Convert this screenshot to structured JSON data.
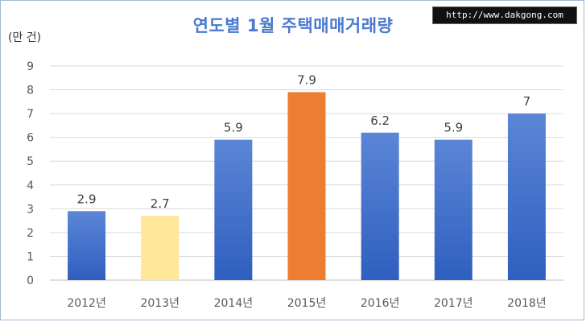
{
  "watermark": "http://www.dakgong.com",
  "chart_data": {
    "type": "bar",
    "title": "연도별 1월 주택매매거래량",
    "unit_label": "(만 건)",
    "xlabel": "",
    "ylabel": "",
    "categories": [
      "2012년",
      "2013년",
      "2014년",
      "2015년",
      "2016년",
      "2017년",
      "2018년"
    ],
    "values": [
      2.9,
      2.7,
      5.9,
      7.9,
      6.2,
      5.9,
      7
    ],
    "data_labels": [
      "2.9",
      "2.7",
      "5.9",
      "7.9",
      "6.2",
      "5.9",
      "7"
    ],
    "bar_colors": [
      "blue",
      "yellow",
      "blue",
      "orange",
      "blue",
      "blue",
      "blue"
    ],
    "palette": {
      "blue_top": "#5b86d6",
      "blue_bottom": "#2f5fbf",
      "yellow": "#ffe699",
      "orange": "#ed7d31"
    },
    "ylim": [
      0,
      9
    ],
    "yticks": [
      "0",
      "1",
      "2",
      "3",
      "4",
      "5",
      "6",
      "7",
      "8",
      "9"
    ],
    "grid": true,
    "legend": "none"
  }
}
